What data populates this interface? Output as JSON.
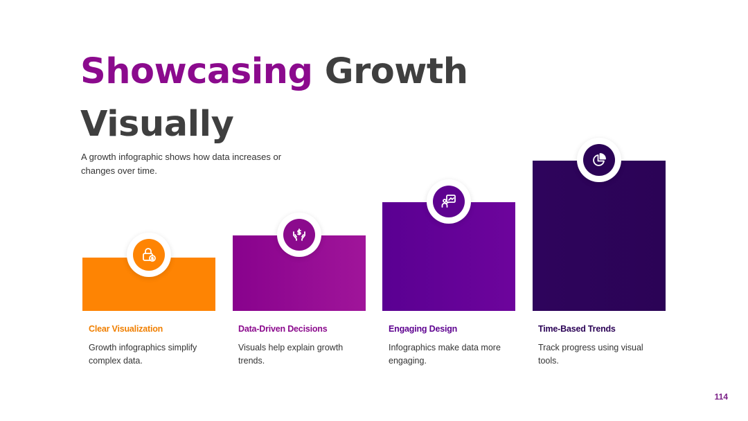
{
  "slide": {
    "title_highlight": "Showcasing",
    "title_rest": " Growth Visually",
    "subtitle": "A growth infographic shows how data increases or changes over time.",
    "page_number": "114"
  },
  "colors": {
    "accent_purple": "#8b0a8d",
    "title_gray": "#3f3f3f",
    "step1": "#fe8403",
    "step2": "#8b0a8d",
    "step3": "#5e0290",
    "step4": "#2b0356"
  },
  "steps": [
    {
      "title": "Clear Visualization",
      "text": "Growth infographics simplify complex data.",
      "icon": "lock-coin-icon",
      "color": "#f07f00",
      "level": 1
    },
    {
      "title": "Data-Driven Decisions",
      "text": "Visuals help explain growth trends.",
      "icon": "money-hands-icon",
      "color": "#8b0a8d",
      "level": 2
    },
    {
      "title": "Engaging Design",
      "text": "Infographics make data more engaging.",
      "icon": "presentation-icon",
      "color": "#5e0290",
      "level": 3
    },
    {
      "title": "Time-Based Trends",
      "text": "Track progress using visual tools.",
      "icon": "pie-chart-icon",
      "color": "#2b0356",
      "level": 4
    }
  ]
}
